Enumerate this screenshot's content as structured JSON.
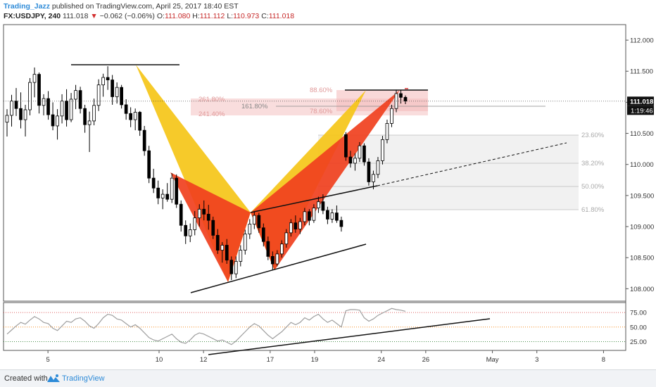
{
  "header": {
    "author": "Trading_Jazz",
    "published": "published on TradingView.com, April 25, 2017 18:40 EST",
    "symbol": "FX:USDJPY, 240",
    "last": "111.018",
    "change": "−0.062 (−0.06%)",
    "o_label": "O:",
    "o_value": "111.080",
    "h_label": "H:",
    "h_value": "111.112",
    "l_label": "L:",
    "l_value": "110.973",
    "c_label": "C:",
    "c_value": "111.018"
  },
  "footer": {
    "created": "Created with",
    "brand": "TradingView"
  },
  "colors": {
    "bull_candle": "#ffffff",
    "bear_candle": "#000000",
    "pattern_red": "#f0401e",
    "pattern_yellow": "#f5c518",
    "fib_zone": "#f8d7d7",
    "retrace_zone": "#eeeeee",
    "rsi_line": "#9e9e9e",
    "price_badge": "#111111"
  },
  "chart_data": {
    "type": "candlestick",
    "y_axis": {
      "ticks": [
        "112.000",
        "111.500",
        "111.000",
        "110.500",
        "110.000",
        "109.500",
        "109.000",
        "108.500",
        "108.000"
      ],
      "range": [
        107.8,
        112.25
      ]
    },
    "x_axis": {
      "ticks": [
        {
          "label": "5",
          "x": 2
        },
        {
          "label": "10",
          "x": 7
        },
        {
          "label": "12",
          "x": 9
        },
        {
          "label": "17",
          "x": 12
        },
        {
          "label": "19",
          "x": 14
        },
        {
          "label": "24",
          "x": 17
        },
        {
          "label": "26",
          "x": 19
        },
        {
          "label": "May",
          "x": 22
        },
        {
          "label": "3",
          "x": 24
        },
        {
          "label": "8",
          "x": 27
        }
      ],
      "range": [
        0,
        28
      ]
    },
    "current_price": "111.018",
    "countdown": "1:19:46",
    "candles_ohlc": [
      [
        110.68,
        110.89,
        110.45,
        110.79
      ],
      [
        110.79,
        111.12,
        110.61,
        111.02
      ],
      [
        111.02,
        111.23,
        110.78,
        110.9
      ],
      [
        110.9,
        111.16,
        110.58,
        110.72
      ],
      [
        110.72,
        110.96,
        110.45,
        110.88
      ],
      [
        110.88,
        111.39,
        110.79,
        111.32
      ],
      [
        111.32,
        111.56,
        111.08,
        111.45
      ],
      [
        111.45,
        111.48,
        110.82,
        110.95
      ],
      [
        110.95,
        111.13,
        110.79,
        111.06
      ],
      [
        111.06,
        111.18,
        110.72,
        110.8
      ],
      [
        110.8,
        111.0,
        110.55,
        110.62
      ],
      [
        110.62,
        110.89,
        110.4,
        110.78
      ],
      [
        110.78,
        111.13,
        110.66,
        111.02
      ],
      [
        111.02,
        111.21,
        110.61,
        110.72
      ],
      [
        110.72,
        111.15,
        110.68,
        111.05
      ],
      [
        111.05,
        111.28,
        110.89,
        111.19
      ],
      [
        111.19,
        111.25,
        110.82,
        110.9
      ],
      [
        110.9,
        110.96,
        110.51,
        110.64
      ],
      [
        110.64,
        110.85,
        110.2,
        110.7
      ],
      [
        110.7,
        111.06,
        110.63,
        110.95
      ],
      [
        110.95,
        111.37,
        110.86,
        111.28
      ],
      [
        111.28,
        111.46,
        111.09,
        111.4
      ],
      [
        111.4,
        111.58,
        111.2,
        111.36
      ],
      [
        111.36,
        111.44,
        110.96,
        111.09
      ],
      [
        111.09,
        111.32,
        110.98,
        111.24
      ],
      [
        111.24,
        111.28,
        110.9,
        110.96
      ],
      [
        110.96,
        111.05,
        110.72,
        110.82
      ],
      [
        110.82,
        110.92,
        110.6,
        110.72
      ],
      [
        110.72,
        110.9,
        110.55,
        110.84
      ],
      [
        110.84,
        110.86,
        110.46,
        110.55
      ],
      [
        110.55,
        110.62,
        110.14,
        110.22
      ],
      [
        110.22,
        110.3,
        109.7,
        109.78
      ],
      [
        109.78,
        109.93,
        109.54,
        109.62
      ],
      [
        109.62,
        109.74,
        109.36,
        109.46
      ],
      [
        109.46,
        109.6,
        109.28,
        109.52
      ],
      [
        109.52,
        109.7,
        109.4,
        109.44
      ],
      [
        109.44,
        109.86,
        109.38,
        109.78
      ],
      [
        109.78,
        109.84,
        109.3,
        109.36
      ],
      [
        109.36,
        109.42,
        108.92,
        109.02
      ],
      [
        109.02,
        109.1,
        108.72,
        108.85
      ],
      [
        108.85,
        109.05,
        108.75,
        108.95
      ],
      [
        108.95,
        109.25,
        108.86,
        109.14
      ],
      [
        109.14,
        109.36,
        109.0,
        109.28
      ],
      [
        109.28,
        109.42,
        109.1,
        109.2
      ],
      [
        109.2,
        109.35,
        108.95,
        109.1
      ],
      [
        109.1,
        109.16,
        108.8,
        108.86
      ],
      [
        108.86,
        108.96,
        108.56,
        108.62
      ],
      [
        108.62,
        108.75,
        108.42,
        108.7
      ],
      [
        108.7,
        108.8,
        108.4,
        108.46
      ],
      [
        108.46,
        108.52,
        108.14,
        108.24
      ],
      [
        108.24,
        108.52,
        108.17,
        108.44
      ],
      [
        108.44,
        108.7,
        108.36,
        108.62
      ],
      [
        108.62,
        108.95,
        108.55,
        108.88
      ],
      [
        108.88,
        109.12,
        108.8,
        109.04
      ],
      [
        109.04,
        109.24,
        108.96,
        109.18
      ],
      [
        109.18,
        109.22,
        108.9,
        108.98
      ],
      [
        108.98,
        109.05,
        108.68,
        108.76
      ],
      [
        108.76,
        108.84,
        108.46,
        108.52
      ],
      [
        108.52,
        108.6,
        108.3,
        108.4
      ],
      [
        108.4,
        108.62,
        108.36,
        108.56
      ],
      [
        108.56,
        108.78,
        108.5,
        108.72
      ],
      [
        108.72,
        108.96,
        108.66,
        108.9
      ],
      [
        108.9,
        109.12,
        108.84,
        109.06
      ],
      [
        109.06,
        109.18,
        108.9,
        108.96
      ],
      [
        108.96,
        109.14,
        108.88,
        109.08
      ],
      [
        109.08,
        109.3,
        109.02,
        109.24
      ],
      [
        109.24,
        109.28,
        109.02,
        109.1
      ],
      [
        109.1,
        109.36,
        109.06,
        109.3
      ],
      [
        109.3,
        109.48,
        109.22,
        109.4
      ],
      [
        109.4,
        109.52,
        109.2,
        109.26
      ],
      [
        109.26,
        109.32,
        109.04,
        109.12
      ],
      [
        109.12,
        109.28,
        109.06,
        109.22
      ],
      [
        109.22,
        109.34,
        109.06,
        109.1
      ],
      [
        109.1,
        109.16,
        108.92,
        109.0
      ],
      [
        110.48,
        110.52,
        110.06,
        110.12
      ],
      [
        110.12,
        110.22,
        109.95,
        110.02
      ],
      [
        110.02,
        110.18,
        109.9,
        110.1
      ],
      [
        110.1,
        110.36,
        110.04,
        110.3
      ],
      [
        110.3,
        110.34,
        109.98,
        110.04
      ],
      [
        110.04,
        110.1,
        109.66,
        109.72
      ],
      [
        109.72,
        109.9,
        109.6,
        109.84
      ],
      [
        109.84,
        110.12,
        109.78,
        110.06
      ],
      [
        110.06,
        110.46,
        110.0,
        110.4
      ],
      [
        110.4,
        110.72,
        110.34,
        110.66
      ],
      [
        110.66,
        110.96,
        110.6,
        110.9
      ],
      [
        110.9,
        111.2,
        110.84,
        111.14
      ],
      [
        111.14,
        111.2,
        110.98,
        111.08
      ],
      [
        111.08,
        111.11,
        110.97,
        111.02
      ]
    ],
    "rsi": {
      "levels": [
        "75.00",
        "50.00",
        "25.00"
      ],
      "range": [
        10,
        92
      ],
      "values": [
        38,
        45,
        52,
        58,
        55,
        62,
        68,
        64,
        58,
        56,
        48,
        44,
        52,
        60,
        58,
        64,
        66,
        60,
        52,
        48,
        56,
        66,
        72,
        70,
        64,
        62,
        56,
        50,
        54,
        48,
        40,
        32,
        28,
        26,
        30,
        34,
        38,
        30,
        24,
        22,
        28,
        36,
        40,
        38,
        34,
        30,
        26,
        28,
        24,
        20,
        26,
        34,
        42,
        50,
        56,
        52,
        44,
        36,
        30,
        36,
        42,
        50,
        58,
        54,
        58,
        66,
        62,
        68,
        72,
        64,
        58,
        62,
        56,
        50,
        78,
        80,
        80,
        79,
        66,
        60,
        64,
        70,
        74,
        78,
        82,
        80,
        79,
        77
      ]
    },
    "fib_labels": {
      "pct_886": "88.60%",
      "pct_2618": "261.80%",
      "pct_1618": "161.80%",
      "pct_786": "78.60%",
      "pct_2414": "241.40%",
      "pct_236": "23.60%",
      "pct_382": "38.20%",
      "pct_50": "50.00%",
      "pct_618": "61.80%"
    }
  }
}
